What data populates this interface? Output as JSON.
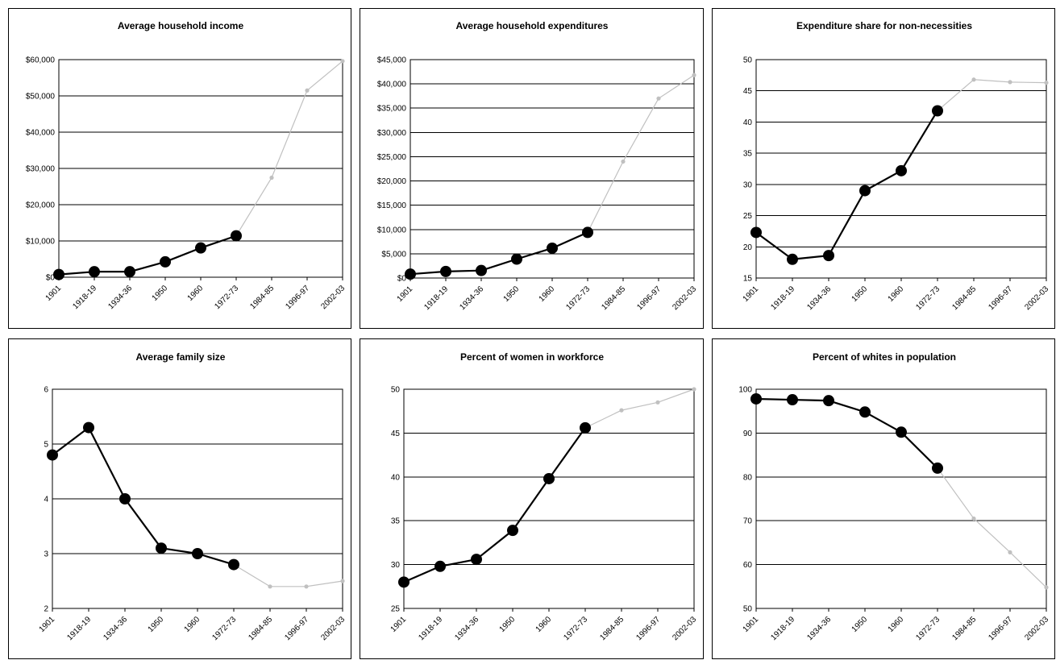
{
  "colors": {
    "recorded_series": "#000000",
    "projected_series": "#c0c0c0",
    "gridline": "#000000",
    "background": "#ffffff"
  },
  "chart_data": [
    {
      "type": "line",
      "title": "Average household income",
      "categories": [
        "1901",
        "1918-19",
        "1934-36",
        "1950",
        "1960",
        "1972-73",
        "1984-85",
        "1996-97",
        "2002-03"
      ],
      "values": [
        750,
        1520,
        1520,
        4240,
        8080,
        11420,
        27450,
        51500,
        59600
      ],
      "ylim": [
        0,
        60000
      ],
      "ytick_values": [
        0,
        10000,
        20000,
        30000,
        40000,
        50000,
        60000
      ],
      "ytick_labels": [
        "$0",
        "$10,000",
        "$20,000",
        "$30,000",
        "$40,000",
        "$50,000",
        "$60,000"
      ],
      "grid": true
    },
    {
      "type": "line",
      "title": "Average household expenditures",
      "categories": [
        "1901",
        "1918-19",
        "1934-36",
        "1950",
        "1960",
        "1972-73",
        "1984-85",
        "1996-97",
        "2002-03"
      ],
      "values": [
        800,
        1350,
        1550,
        3900,
        6150,
        9400,
        24000,
        37000,
        41800
      ],
      "ylim": [
        0,
        45000
      ],
      "ytick_values": [
        0,
        5000,
        10000,
        15000,
        20000,
        25000,
        30000,
        35000,
        40000,
        45000
      ],
      "ytick_labels": [
        "$0",
        "$5,000",
        "$10,000",
        "$15,000",
        "$20,000",
        "$25,000",
        "$30,000",
        "$35,000",
        "$40,000",
        "$45,000"
      ],
      "grid": true
    },
    {
      "type": "line",
      "title": "Expenditure share for non-necessities",
      "categories": [
        "1901",
        "1918-19",
        "1934-36",
        "1950",
        "1960",
        "1972-73",
        "1984-85",
        "1996-97",
        "2002-03"
      ],
      "values": [
        22.3,
        18.0,
        18.6,
        29.0,
        32.2,
        41.8,
        46.8,
        46.4,
        46.3
      ],
      "ylim": [
        15,
        50
      ],
      "ytick_values": [
        15,
        20,
        25,
        30,
        35,
        40,
        45,
        50
      ],
      "ytick_labels": [
        "15",
        "20",
        "25",
        "30",
        "35",
        "40",
        "45",
        "50"
      ],
      "grid": true
    },
    {
      "type": "line",
      "title": "Average family size",
      "categories": [
        "1901",
        "1918-19",
        "1934-36",
        "1950",
        "1960",
        "1972-73",
        "1984-85",
        "1996-97",
        "2002-03"
      ],
      "values": [
        4.8,
        5.3,
        4.0,
        3.1,
        3.0,
        2.8,
        2.4,
        2.4,
        2.5
      ],
      "ylim": [
        2,
        6
      ],
      "ytick_values": [
        2,
        3,
        4,
        5,
        6
      ],
      "ytick_labels": [
        "2",
        "3",
        "4",
        "5",
        "6"
      ],
      "grid": true
    },
    {
      "type": "line",
      "title": "Percent of women in workforce",
      "categories": [
        "1901",
        "1918-19",
        "1934-36",
        "1950",
        "1960",
        "1972-73",
        "1984-85",
        "1996-97",
        "2002-03"
      ],
      "values": [
        28.0,
        29.8,
        30.6,
        33.9,
        39.8,
        45.6,
        47.6,
        48.5,
        50.0
      ],
      "ylim": [
        25,
        50
      ],
      "ytick_values": [
        25,
        30,
        35,
        40,
        45,
        50
      ],
      "ytick_labels": [
        "25",
        "30",
        "35",
        "40",
        "45",
        "50"
      ],
      "grid": true
    },
    {
      "type": "line",
      "title": "Percent of whites in population",
      "categories": [
        "1901",
        "1918-19",
        "1934-36",
        "1950",
        "1960",
        "1972-73",
        "1984-85",
        "1996-97",
        "2002-03"
      ],
      "values": [
        97.8,
        97.6,
        97.4,
        94.8,
        90.2,
        82.0,
        70.5,
        62.8,
        54.8
      ],
      "ylim": [
        50,
        100
      ],
      "ytick_values": [
        50,
        60,
        70,
        80,
        90,
        100
      ],
      "ytick_labels": [
        "50",
        "60",
        "70",
        "80",
        "90",
        "100"
      ],
      "grid": true
    }
  ]
}
